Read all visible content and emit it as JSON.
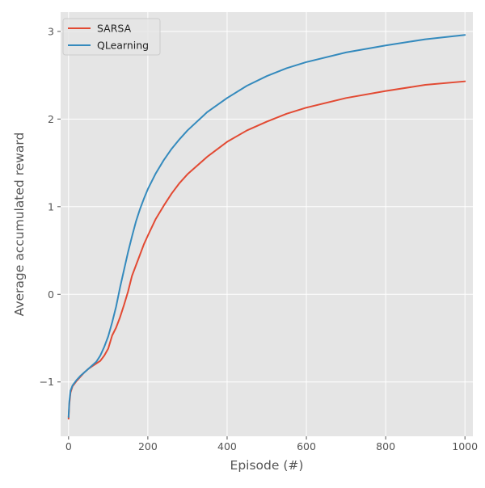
{
  "chart_data": {
    "type": "line",
    "title": "",
    "xlabel": "Episode (#)",
    "ylabel": "Average accumulated reward",
    "xlim": [
      -20,
      1020
    ],
    "ylim": [
      -1.62,
      3.22
    ],
    "xticks": [
      0,
      200,
      400,
      600,
      800,
      1000
    ],
    "xtick_labels": [
      "0",
      "200",
      "400",
      "600",
      "800",
      "1000"
    ],
    "yticks": [
      -1,
      0,
      1,
      2,
      3
    ],
    "ytick_labels": [
      "−1",
      "0",
      "1",
      "2",
      "3"
    ],
    "grid": true,
    "legend_position": "top-left",
    "style": "ggplot",
    "colors": {
      "plot_background": "#E5E5E5",
      "grid": "#FFFFFF",
      "text": "#555555",
      "label": "#555555"
    },
    "series": [
      {
        "name": "SARSA",
        "color": "#E24A33",
        "x": [
          0,
          2,
          5,
          10,
          20,
          30,
          40,
          50,
          60,
          70,
          80,
          90,
          100,
          110,
          120,
          130,
          140,
          150,
          160,
          170,
          180,
          190,
          200,
          220,
          240,
          260,
          280,
          300,
          350,
          400,
          450,
          500,
          550,
          600,
          700,
          800,
          900,
          1000
        ],
        "values": [
          -1.42,
          -1.25,
          -1.12,
          -1.05,
          -0.99,
          -0.94,
          -0.89,
          -0.85,
          -0.82,
          -0.79,
          -0.76,
          -0.7,
          -0.62,
          -0.47,
          -0.38,
          -0.26,
          -0.12,
          0.03,
          0.21,
          0.33,
          0.45,
          0.57,
          0.67,
          0.86,
          1.01,
          1.15,
          1.27,
          1.37,
          1.57,
          1.74,
          1.87,
          1.97,
          2.06,
          2.13,
          2.24,
          2.32,
          2.39,
          2.43
        ]
      },
      {
        "name": "QLearning",
        "color": "#348ABD",
        "x": [
          0,
          2,
          5,
          10,
          20,
          30,
          40,
          50,
          60,
          70,
          80,
          90,
          100,
          110,
          120,
          130,
          140,
          150,
          160,
          170,
          180,
          190,
          200,
          220,
          240,
          260,
          280,
          300,
          350,
          400,
          450,
          500,
          550,
          600,
          700,
          800,
          900,
          1000
        ],
        "values": [
          -1.4,
          -1.22,
          -1.1,
          -1.04,
          -0.98,
          -0.93,
          -0.89,
          -0.85,
          -0.81,
          -0.77,
          -0.7,
          -0.6,
          -0.48,
          -0.32,
          -0.14,
          0.08,
          0.28,
          0.48,
          0.66,
          0.83,
          0.97,
          1.09,
          1.2,
          1.38,
          1.53,
          1.66,
          1.77,
          1.87,
          2.08,
          2.24,
          2.38,
          2.49,
          2.58,
          2.65,
          2.76,
          2.84,
          2.91,
          2.96
        ]
      }
    ]
  }
}
